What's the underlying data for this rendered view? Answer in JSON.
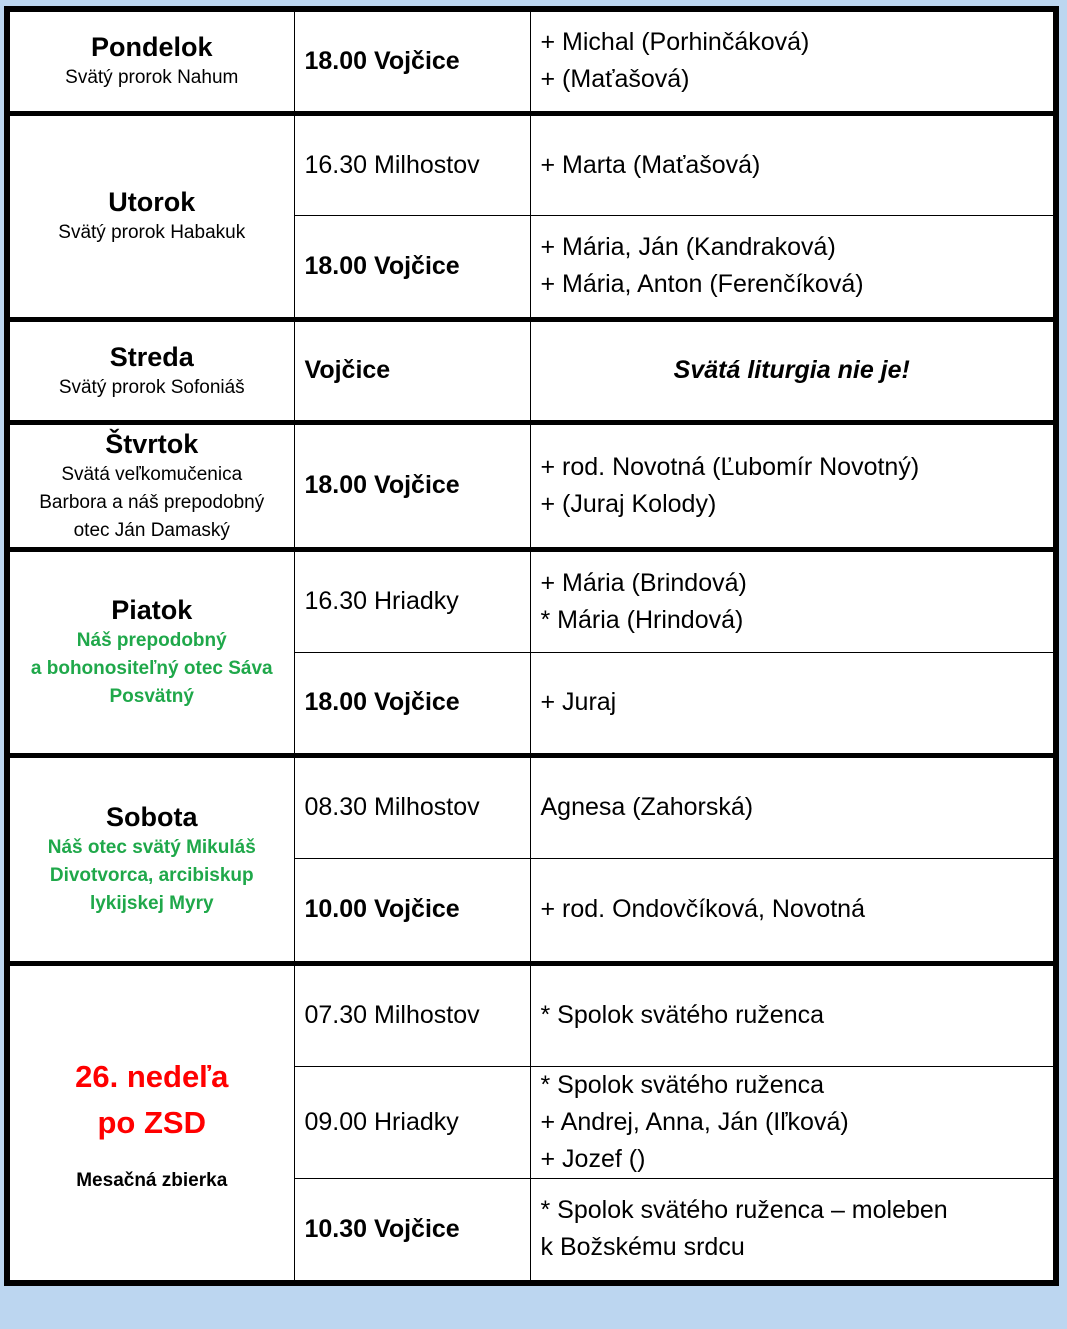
{
  "days": [
    {
      "name": "Pondelok",
      "subtitle": [
        "Svätý prorok Nahum"
      ],
      "services": [
        {
          "time": "18.00 Vojčice",
          "bold": true,
          "intentions": [
            "+ Michal (Porhinčáková)",
            "+ (Maťašová)"
          ]
        }
      ]
    },
    {
      "name": "Utorok",
      "subtitle": [
        "Svätý prorok Habakuk"
      ],
      "services": [
        {
          "time": "16.30 Milhostov",
          "bold": false,
          "intentions": [
            "+ Marta (Maťašová)"
          ]
        },
        {
          "time": "18.00 Vojčice",
          "bold": true,
          "intentions": [
            "+ Mária, Ján (Kandraková)",
            "+ Mária, Anton (Ferenčíková)"
          ]
        }
      ]
    },
    {
      "name": "Streda",
      "subtitle": [
        "Svätý prorok Sofoniáš"
      ],
      "services": [
        {
          "time": "Vojčice",
          "bold": true,
          "special": true,
          "intentions": [
            "Svätá liturgia nie je!"
          ]
        }
      ]
    },
    {
      "name": "Štvrtok",
      "subtitle": [
        "Svätá veľkomučenica",
        "Barbora a náš prepodobný",
        "otec Ján Damaský"
      ],
      "services": [
        {
          "time": "18.00 Vojčice",
          "bold": true,
          "intentions": [
            "+ rod. Novotná (Ľubomír Novotný)",
            "+ (Juraj Kolody)"
          ]
        }
      ]
    },
    {
      "name": "Piatok",
      "subtitle_color": "#1fa84a",
      "subtitle": [
        "Náš prepodobný",
        "a bohonositeľný otec Sáva",
        "Posvätný"
      ],
      "services": [
        {
          "time": "16.30 Hriadky",
          "bold": false,
          "intentions": [
            "+ Mária (Brindová)",
            "* Mária (Hrindová)"
          ]
        },
        {
          "time": "18.00 Vojčice",
          "bold": true,
          "intentions": [
            "+ Juraj"
          ]
        }
      ]
    },
    {
      "name": "Sobota",
      "subtitle_color": "#1fa84a",
      "subtitle": [
        "Náš otec svätý Mikuláš",
        "Divotvorca, arcibiskup",
        "lykijskej Myry"
      ],
      "services": [
        {
          "time": "08.30 Milhostov",
          "bold": false,
          "intentions": [
            "Agnesa (Zahorská)"
          ]
        },
        {
          "time": "10.00 Vojčice",
          "bold": true,
          "intentions": [
            "+ rod. Ondovčíková, Novotná"
          ]
        }
      ]
    },
    {
      "name": "26. nedeľa po ZSD",
      "name_color": "#ff0000",
      "note": "Mesačná zbierka",
      "subtitle": [],
      "services": [
        {
          "time": "07.30 Milhostov",
          "bold": false,
          "intentions": [
            "* Spolok svätého ruženca"
          ]
        },
        {
          "time": "09.00 Hriadky",
          "bold": false,
          "intentions": [
            "* Spolok svätého ruženca",
            "+ Andrej, Anna, Ján (Iľková)",
            "+ Jozef ()"
          ]
        },
        {
          "time": "10.30 Vojčice",
          "bold": true,
          "intentions": [
            "* Spolok svätého ruženca – moleben",
            "k Božskému srdcu"
          ]
        }
      ]
    }
  ]
}
